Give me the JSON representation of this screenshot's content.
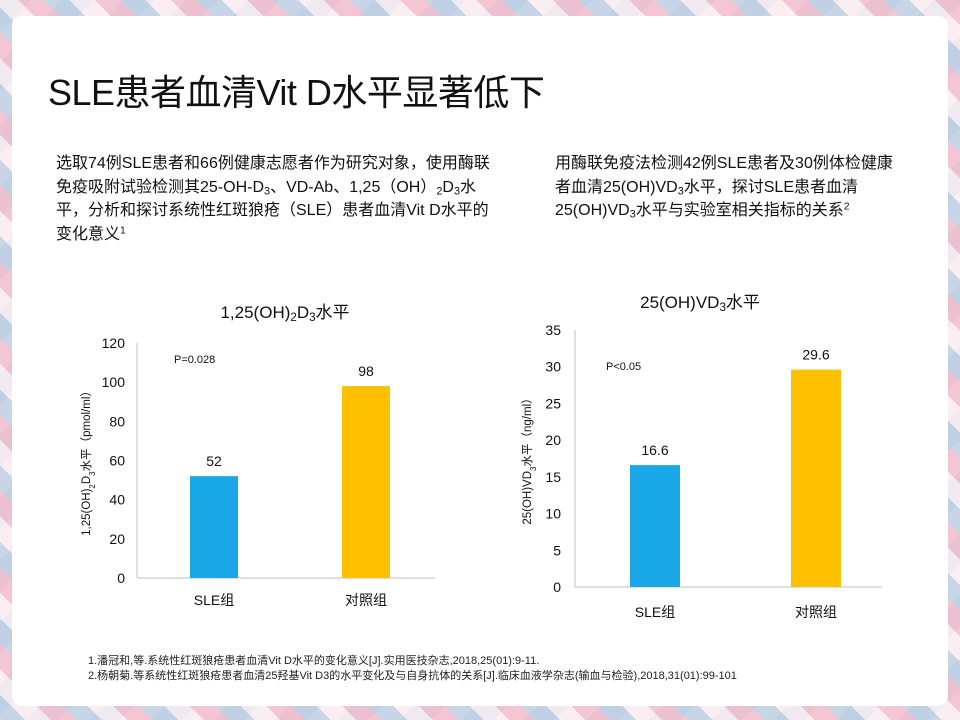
{
  "title": "SLE患者血清Vit D水平显著低下",
  "left_description": {
    "parts": [
      "选取74例SLE患者和66例健康志愿者作为研究对象，使用酶联免疫吸附试验检测其25-OH-D",
      "3",
      "、VD-Ab、1,25（OH）",
      "2",
      "D",
      "3",
      "水平，分析和探讨系统性红斑狼疮（SLE）患者血清Vit D水平的变化意义",
      "1"
    ]
  },
  "right_description": {
    "parts": [
      "用酶联免疫法检测42例SLE患者及30例体检健康者血清25(OH)VD",
      "3",
      "水平，探讨SLE患者血清25(OH)VD",
      "3",
      "水平与实验室相关指标的关系",
      "2"
    ]
  },
  "chart_titles": {
    "left": {
      "a": "1,25(OH)",
      "b": "2",
      "c": "D",
      "d": "3",
      "e": "水平"
    },
    "right": {
      "a": "25(OH)VD",
      "b": "3",
      "c": "水平"
    }
  },
  "chart_data": [
    {
      "type": "bar",
      "title": "1,25(OH)2D3水平",
      "ylabel": "1,25(OH)2D3水平（pmol/ml）",
      "categories": [
        "SLE组",
        "对照组"
      ],
      "values": [
        52,
        98
      ],
      "value_labels": [
        "52",
        "98"
      ],
      "colors": [
        "#1aa7e8",
        "#ffc000"
      ],
      "ylim": [
        0,
        120
      ],
      "yticks": [
        0,
        20,
        40,
        60,
        80,
        100,
        120
      ],
      "annotation": "P=0.028",
      "grid": false,
      "legend": "none"
    },
    {
      "type": "bar",
      "title": "25(OH)VD3水平",
      "ylabel": "25(OH)VD3水平（ng/ml）",
      "categories": [
        "SLE组",
        "对照组"
      ],
      "values": [
        16.6,
        29.6
      ],
      "value_labels": [
        "16.6",
        "29.6"
      ],
      "colors": [
        "#1aa7e8",
        "#ffc000"
      ],
      "ylim": [
        0,
        35
      ],
      "yticks": [
        0,
        5,
        10,
        15,
        20,
        25,
        30,
        35
      ],
      "annotation": "P<0.05",
      "grid": false,
      "legend": "none"
    }
  ],
  "references": [
    "1.潘冠和,等.系统性红斑狼疮患者血清Vit  D水平的变化意义[J].实用医技杂志,2018,25(01):9-11.",
    "2.杨朝菊.等系统性红斑狼疮患者血清25羟基Vit  D3的水平变化及与自身抗体的关系[J].临床血液学杂志(输血与检验),2018,31(01):99-101"
  ],
  "colors": {
    "bar_sle": "#1aa7e8",
    "bar_control": "#ffc000",
    "axis": "#bfbfbf"
  }
}
